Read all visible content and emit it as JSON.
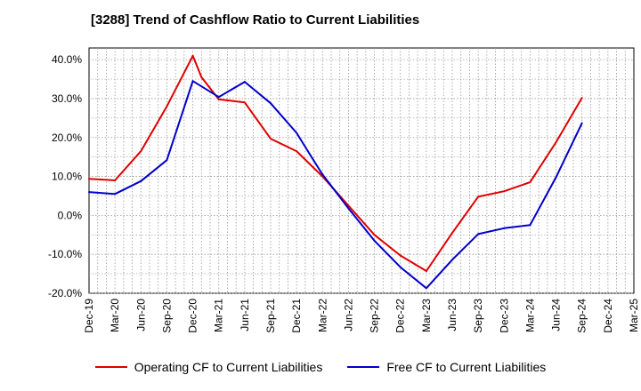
{
  "title": "[3288]  Trend of Cashflow Ratio to Current Liabilities",
  "colors": {
    "operating": "#e00000",
    "free": "#0000cc",
    "grid": "#999999"
  },
  "chart_data": {
    "type": "line",
    "title": "[3288]  Trend of Cashflow Ratio to Current Liabilities",
    "xlabel": "",
    "ylabel": "",
    "ylim": [
      -20,
      43
    ],
    "yticks": [
      -20,
      -10,
      0,
      10,
      20,
      30,
      40
    ],
    "ytick_labels": [
      "-20.0%",
      "-10.0%",
      "0.0%",
      "10.0%",
      "20.0%",
      "30.0%",
      "40.0%"
    ],
    "categories": [
      "Dec-19",
      "Mar-20",
      "Jun-20",
      "Sep-20",
      "Dec-20",
      "Mar-21",
      "Jun-21",
      "Sep-21",
      "Dec-21",
      "Mar-22",
      "Jun-22",
      "Sep-22",
      "Dec-22",
      "Mar-23",
      "Jun-23",
      "Sep-23",
      "Dec-23",
      "Mar-24",
      "Jun-24",
      "Sep-24",
      "Dec-24",
      "Mar-25"
    ],
    "grid": true,
    "legend_position": "bottom",
    "series": [
      {
        "name": "Operating CF to Current Liabilities",
        "color": "#e00000",
        "x": [
          "Dec-19",
          "Mar-20",
          "Jun-20",
          "Sep-20",
          "Dec-20",
          "Jan-21",
          "Mar-21",
          "Jun-21",
          "Sep-21",
          "Dec-21",
          "Mar-22",
          "Jun-22",
          "Sep-22",
          "Dec-22",
          "Mar-23",
          "Jun-23",
          "Sep-23",
          "Dec-23",
          "Mar-24",
          "Jun-24",
          "Sep-24"
        ],
        "values": [
          9.4,
          9.0,
          16.5,
          28.0,
          41.0,
          35.5,
          29.8,
          29.0,
          19.7,
          16.5,
          10.0,
          2.5,
          -5.0,
          -10.3,
          -14.3,
          -4.5,
          4.8,
          6.2,
          8.5,
          18.8,
          30.2
        ]
      },
      {
        "name": "Free CF to Current Liabilities",
        "color": "#0000cc",
        "x": [
          "Dec-19",
          "Mar-20",
          "Jun-20",
          "Sep-20",
          "Dec-20",
          "Mar-21",
          "Jun-21",
          "Sep-21",
          "Dec-21",
          "Feb-22",
          "Mar-22",
          "Jun-22",
          "Sep-22",
          "Dec-22",
          "Mar-23",
          "Jun-23",
          "Sep-23",
          "Dec-23",
          "Mar-24",
          "Jun-24",
          "Sep-24"
        ],
        "values": [
          6.0,
          5.5,
          8.8,
          14.2,
          34.5,
          30.4,
          34.3,
          28.8,
          21.2,
          14.0,
          10.5,
          1.8,
          -6.5,
          -13.3,
          -18.7,
          -11.4,
          -4.8,
          -3.3,
          -2.5,
          9.8,
          23.7
        ]
      }
    ]
  }
}
